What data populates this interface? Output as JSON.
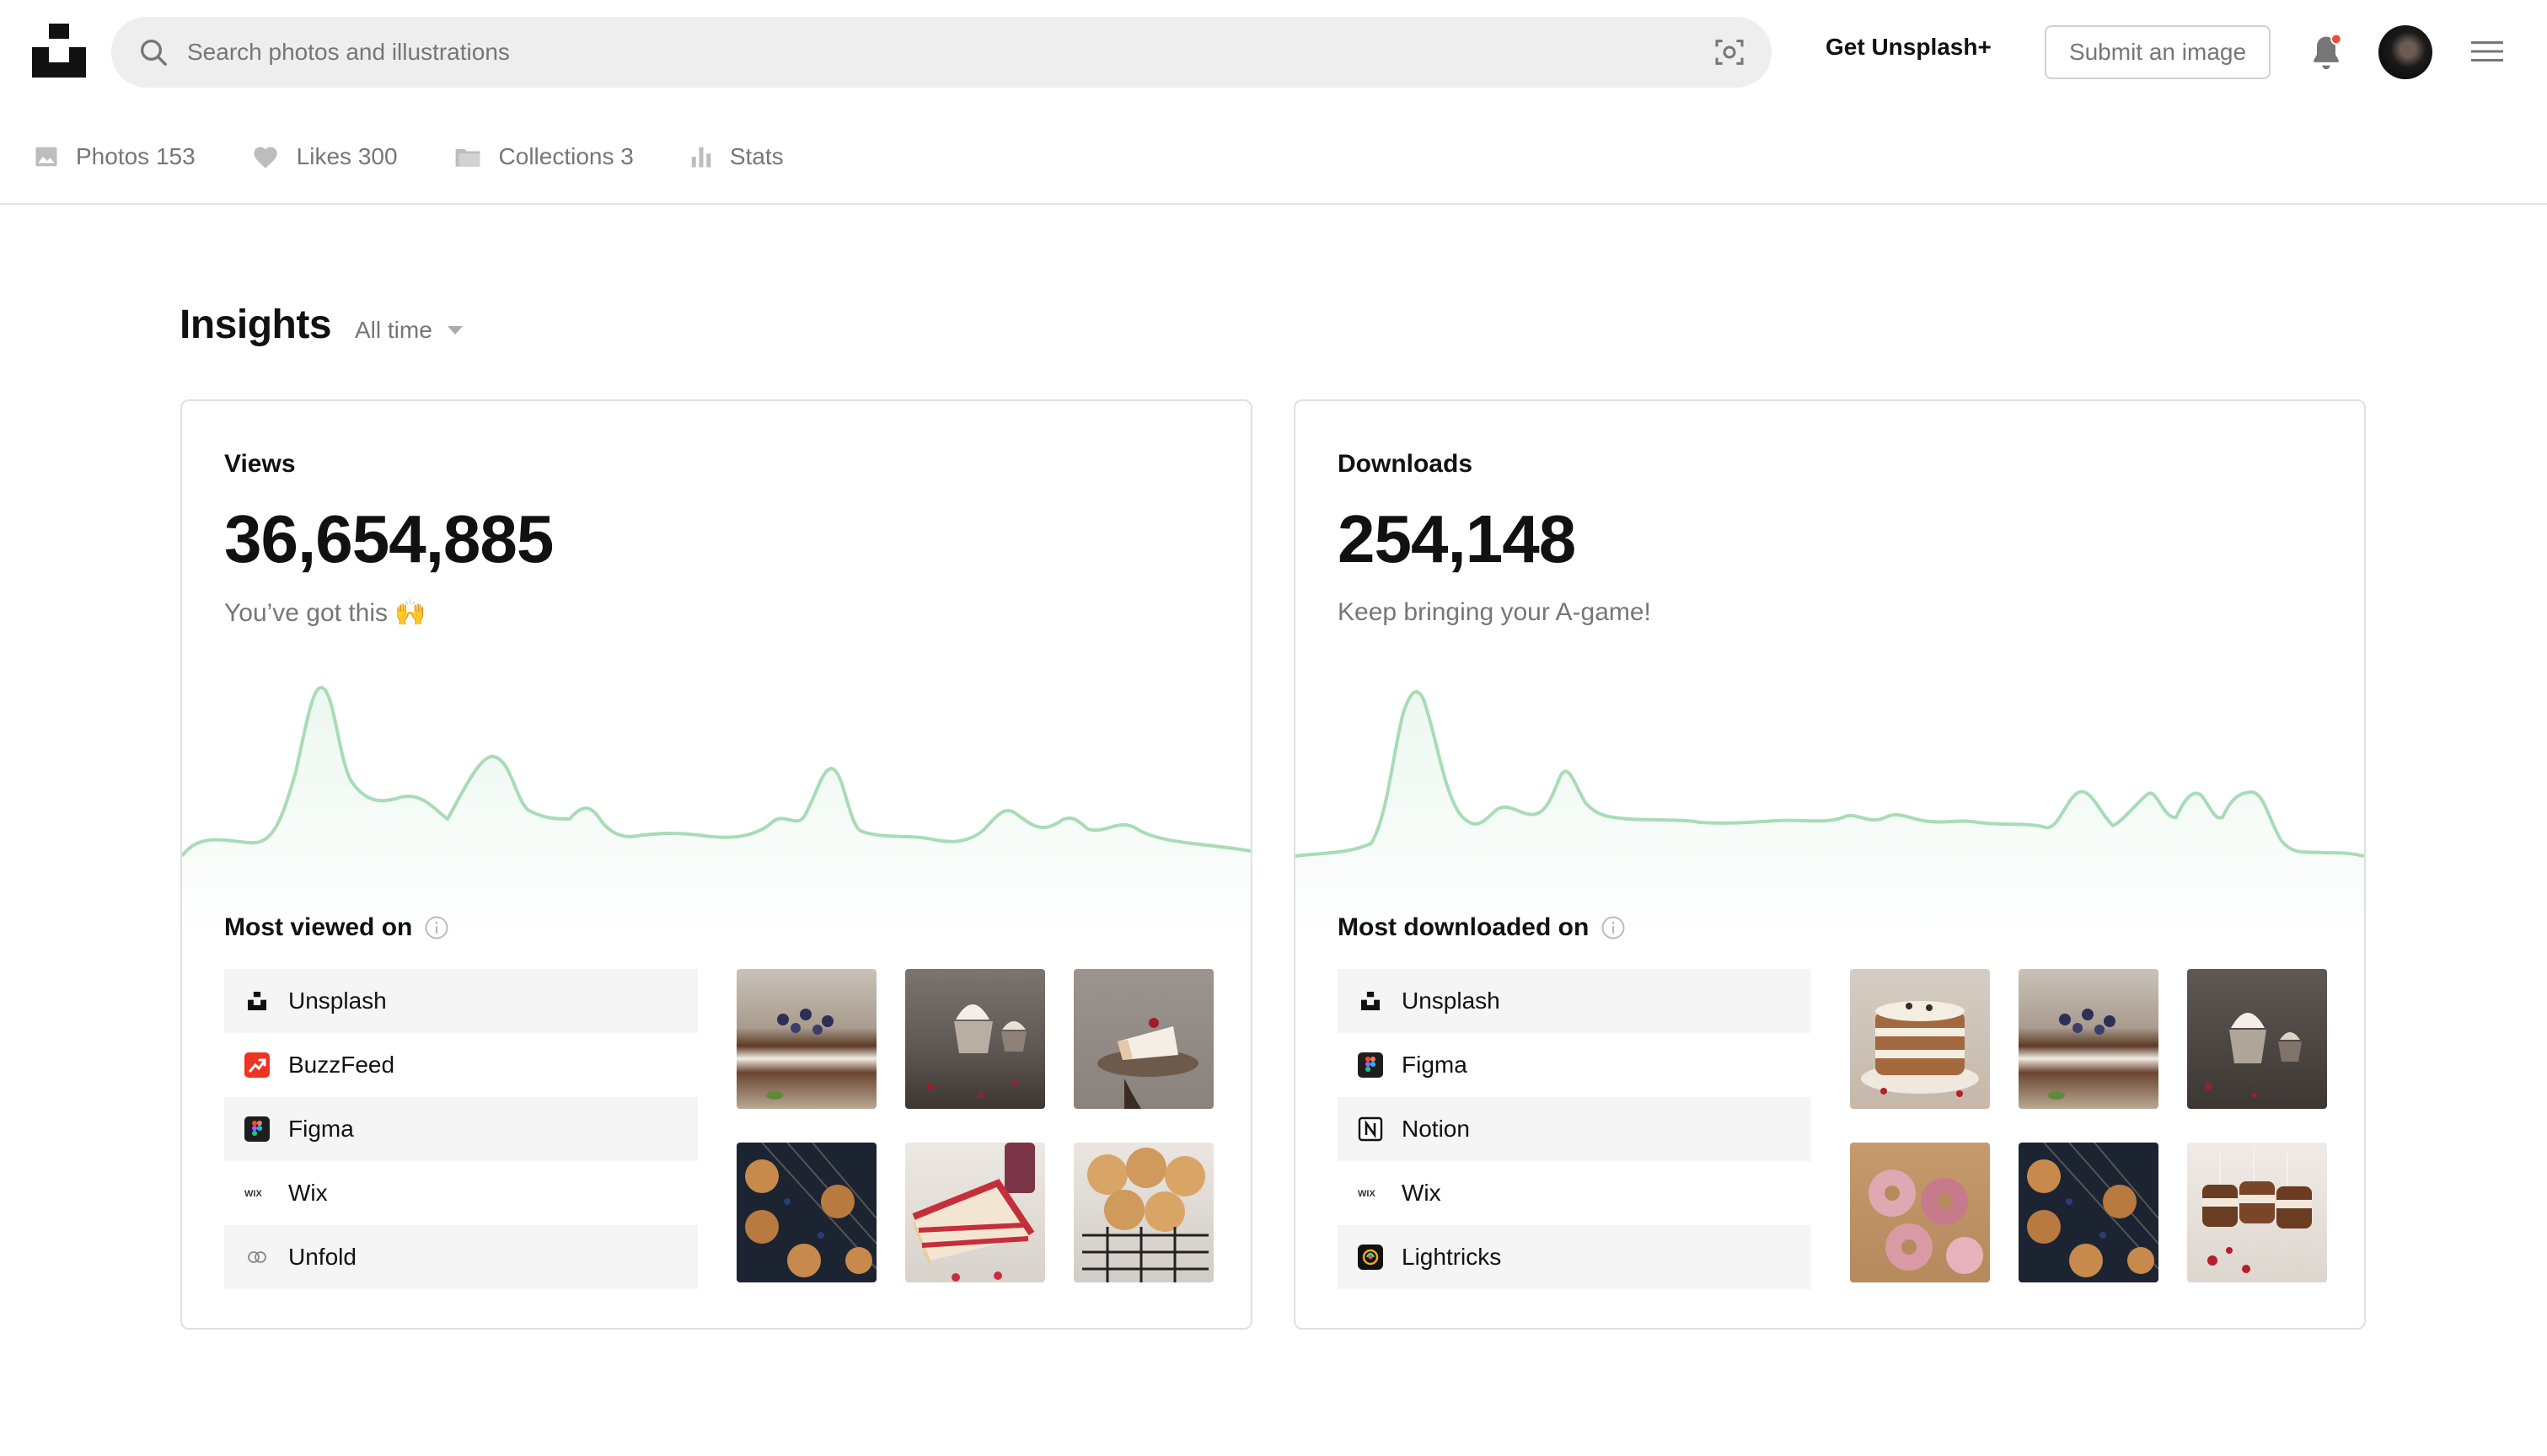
{
  "header": {
    "search_placeholder": "Search photos and illustrations",
    "get_plus": "Get Unsplash+",
    "submit": "Submit an image"
  },
  "tabs": [
    {
      "label": "Photos 153",
      "icon": "photo-icon"
    },
    {
      "label": "Likes 300",
      "icon": "heart-icon"
    },
    {
      "label": "Collections 3",
      "icon": "collections-icon"
    },
    {
      "label": "Stats",
      "icon": "stats-icon"
    }
  ],
  "insights": {
    "title": "Insights",
    "range": "All time"
  },
  "views": {
    "label": "Views",
    "value": "36,654,885",
    "subtitle": "You’ve got this 🙌",
    "most_title": "Most viewed on",
    "platforms": [
      "Unsplash",
      "BuzzFeed",
      "Figma",
      "Wix",
      "Unfold"
    ]
  },
  "downloads": {
    "label": "Downloads",
    "value": "254,148",
    "subtitle": "Keep bringing your A-game!",
    "most_title": "Most downloaded on",
    "platforms": [
      "Unsplash",
      "Figma",
      "Notion",
      "Wix",
      "Lightricks"
    ]
  },
  "colors": {
    "chart_line": "#a8dcb6",
    "notification_dot": "#e2533d",
    "buzzfeed": "#ee3322"
  }
}
